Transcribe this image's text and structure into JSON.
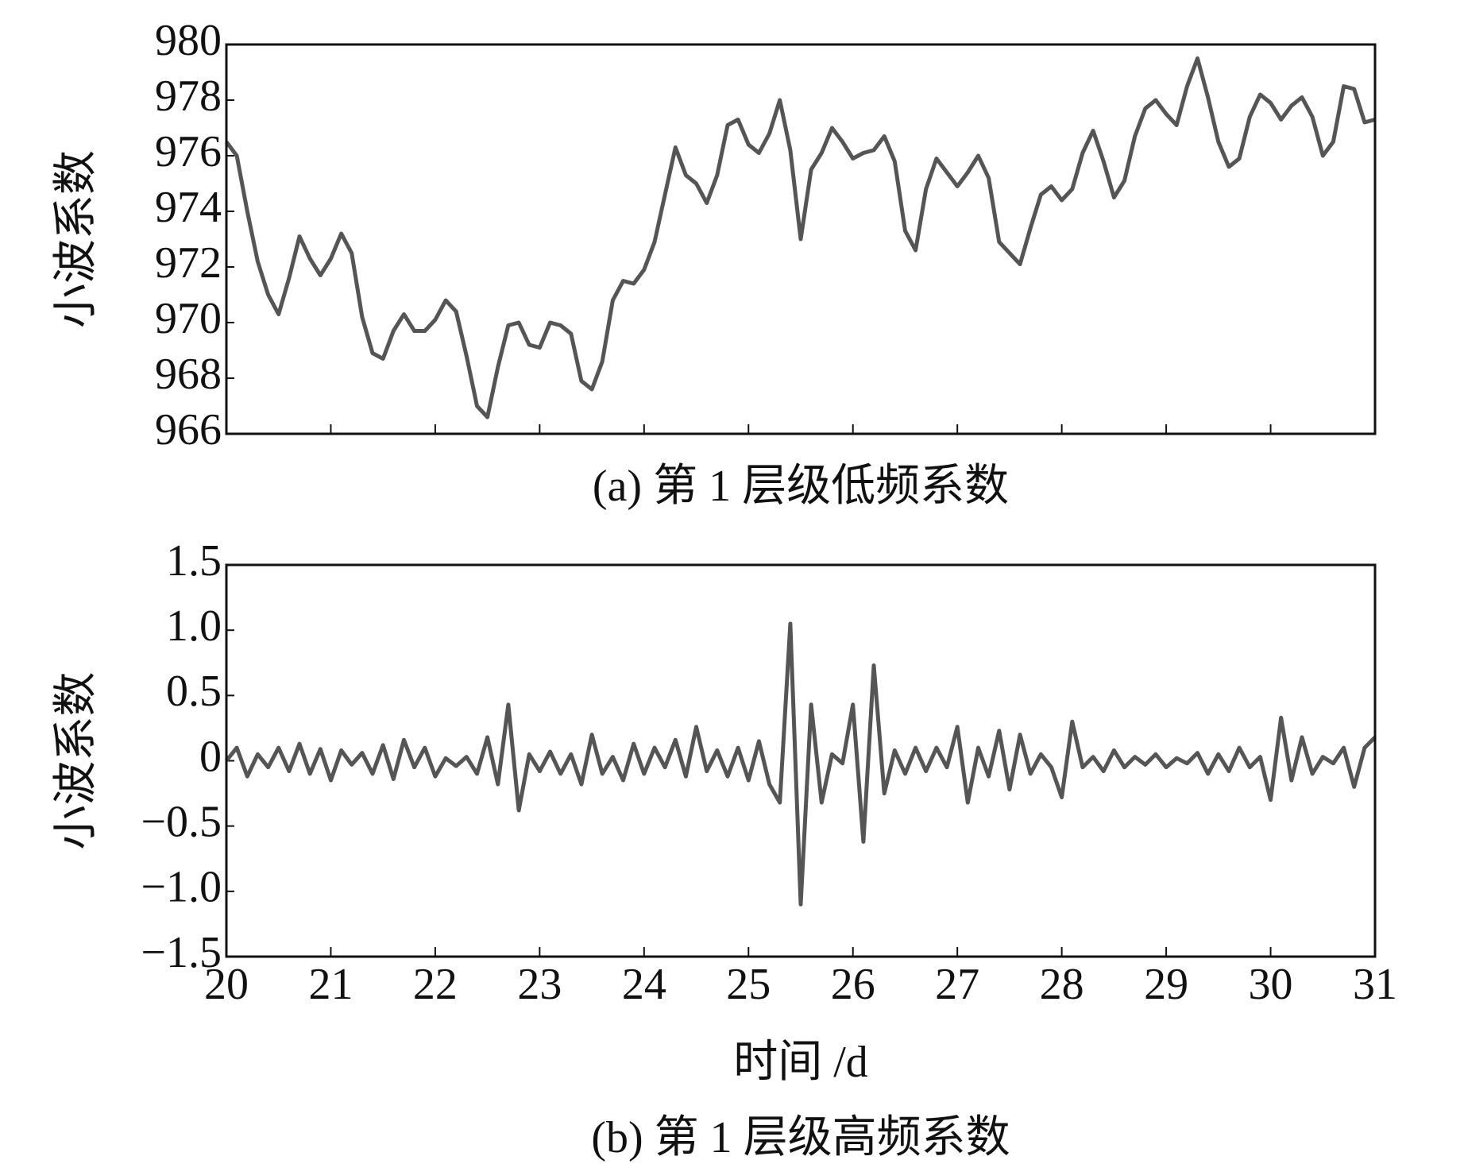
{
  "chart_data": [
    {
      "type": "line",
      "caption": "(a) 第 1 层级低频系数",
      "ylabel": "小波系数",
      "color": "#555555",
      "show_xtick_labels": false,
      "x": [
        20.0,
        20.1,
        20.2,
        20.3,
        20.4,
        20.5,
        20.6,
        20.7,
        20.8,
        20.9,
        21.0,
        21.1,
        21.2,
        21.3,
        21.4,
        21.5,
        21.6,
        21.7,
        21.8,
        21.9,
        22.0,
        22.1,
        22.2,
        22.3,
        22.4,
        22.5,
        22.6,
        22.7,
        22.8,
        22.9,
        23.0,
        23.1,
        23.2,
        23.3,
        23.4,
        23.5,
        23.6,
        23.7,
        23.8,
        23.9,
        24.0,
        24.1,
        24.2,
        24.3,
        24.4,
        24.5,
        24.6,
        24.7,
        24.8,
        24.9,
        25.0,
        25.1,
        25.2,
        25.3,
        25.4,
        25.5,
        25.6,
        25.7,
        25.8,
        25.9,
        26.0,
        26.1,
        26.2,
        26.3,
        26.4,
        26.5,
        26.6,
        26.7,
        26.8,
        26.9,
        27.0,
        27.1,
        27.2,
        27.3,
        27.4,
        27.5,
        27.6,
        27.7,
        27.8,
        27.9,
        28.0,
        28.1,
        28.2,
        28.3,
        28.4,
        28.5,
        28.6,
        28.7,
        28.8,
        28.9,
        29.0,
        29.1,
        29.2,
        29.3,
        29.4,
        29.5,
        29.6,
        29.7,
        29.8,
        29.9,
        30.0,
        30.1,
        30.2,
        30.3,
        30.4,
        30.5,
        30.6,
        30.7,
        30.8,
        30.9,
        31.0
      ],
      "values": [
        976.5,
        976.0,
        974.0,
        972.2,
        971.0,
        970.3,
        971.6,
        973.1,
        972.3,
        971.7,
        972.3,
        973.2,
        972.5,
        970.2,
        968.9,
        968.7,
        969.7,
        970.3,
        969.7,
        969.7,
        970.1,
        970.8,
        970.4,
        968.8,
        967.0,
        966.6,
        968.4,
        969.9,
        970.0,
        969.2,
        969.1,
        970.0,
        969.9,
        969.6,
        967.9,
        967.6,
        968.6,
        970.8,
        971.5,
        971.4,
        971.9,
        972.9,
        974.6,
        976.3,
        975.3,
        975.0,
        974.3,
        975.3,
        977.1,
        977.3,
        976.4,
        976.1,
        976.8,
        978.0,
        976.2,
        973.0,
        975.5,
        976.1,
        977.0,
        976.5,
        975.9,
        976.1,
        976.2,
        976.7,
        975.8,
        973.3,
        972.6,
        974.8,
        975.9,
        975.4,
        974.9,
        975.4,
        976.0,
        975.2,
        972.9,
        972.5,
        972.1,
        973.4,
        974.6,
        974.9,
        974.4,
        974.8,
        976.1,
        976.9,
        975.8,
        974.5,
        975.1,
        976.7,
        977.7,
        978.0,
        977.5,
        977.1,
        978.5,
        979.5,
        978.1,
        976.5,
        975.6,
        975.9,
        977.4,
        978.2,
        977.9,
        977.3,
        977.8,
        978.1,
        977.4,
        976.0,
        976.5,
        978.5,
        978.4,
        977.2,
        977.3
      ],
      "xlim": [
        20,
        31
      ],
      "xticks": [
        20,
        21,
        22,
        23,
        24,
        25,
        26,
        27,
        28,
        29,
        30,
        31
      ],
      "ylim": [
        966,
        980
      ],
      "yticks": [
        966,
        968,
        970,
        972,
        974,
        976,
        978,
        980
      ]
    },
    {
      "type": "line",
      "caption": "(b) 第 1 层级高频系数",
      "ylabel": "小波系数",
      "xlabel": "时间 /d",
      "color": "#555555",
      "show_xtick_labels": true,
      "x": [
        20.0,
        20.1,
        20.2,
        20.3,
        20.4,
        20.5,
        20.6,
        20.7,
        20.8,
        20.9,
        21.0,
        21.1,
        21.2,
        21.3,
        21.4,
        21.5,
        21.6,
        21.7,
        21.8,
        21.9,
        22.0,
        22.1,
        22.2,
        22.3,
        22.4,
        22.5,
        22.6,
        22.7,
        22.8,
        22.9,
        23.0,
        23.1,
        23.2,
        23.3,
        23.4,
        23.5,
        23.6,
        23.7,
        23.8,
        23.9,
        24.0,
        24.1,
        24.2,
        24.3,
        24.4,
        24.5,
        24.6,
        24.7,
        24.8,
        24.9,
        25.0,
        25.1,
        25.2,
        25.3,
        25.4,
        25.5,
        25.6,
        25.7,
        25.8,
        25.9,
        26.0,
        26.1,
        26.2,
        26.3,
        26.4,
        26.5,
        26.6,
        26.7,
        26.8,
        26.9,
        27.0,
        27.1,
        27.2,
        27.3,
        27.4,
        27.5,
        27.6,
        27.7,
        27.8,
        27.9,
        28.0,
        28.1,
        28.2,
        28.3,
        28.4,
        28.5,
        28.6,
        28.7,
        28.8,
        28.9,
        29.0,
        29.1,
        29.2,
        29.3,
        29.4,
        29.5,
        29.6,
        29.7,
        29.8,
        29.9,
        30.0,
        30.1,
        30.2,
        30.3,
        30.4,
        30.5,
        30.6,
        30.7,
        30.8,
        30.9,
        31.0
      ],
      "values": [
        0.0,
        0.1,
        -0.12,
        0.05,
        -0.05,
        0.1,
        -0.08,
        0.13,
        -0.1,
        0.09,
        -0.15,
        0.08,
        -0.03,
        0.06,
        -0.1,
        0.12,
        -0.14,
        0.16,
        -0.05,
        0.1,
        -0.12,
        0.02,
        -0.04,
        0.03,
        -0.1,
        0.18,
        -0.18,
        0.43,
        -0.38,
        0.05,
        -0.08,
        0.07,
        -0.1,
        0.05,
        -0.18,
        0.2,
        -0.1,
        0.03,
        -0.15,
        0.13,
        -0.1,
        0.1,
        -0.05,
        0.16,
        -0.12,
        0.26,
        -0.08,
        0.08,
        -0.12,
        0.1,
        -0.15,
        0.15,
        -0.18,
        -0.32,
        1.05,
        -1.1,
        0.43,
        -0.32,
        0.05,
        -0.02,
        0.43,
        -0.62,
        0.73,
        -0.25,
        0.08,
        -0.1,
        0.1,
        -0.08,
        0.1,
        -0.05,
        0.26,
        -0.32,
        0.1,
        -0.12,
        0.23,
        -0.22,
        0.2,
        -0.1,
        0.05,
        -0.05,
        -0.28,
        0.3,
        -0.05,
        0.03,
        -0.08,
        0.08,
        -0.05,
        0.03,
        -0.03,
        0.05,
        -0.05,
        0.02,
        -0.02,
        0.06,
        -0.1,
        0.05,
        -0.08,
        0.1,
        -0.05,
        0.03,
        -0.3,
        0.33,
        -0.15,
        0.18,
        -0.1,
        0.03,
        -0.02,
        0.1,
        -0.2,
        0.1,
        0.18
      ],
      "xlim": [
        20,
        31
      ],
      "xticks": [
        20,
        21,
        22,
        23,
        24,
        25,
        26,
        27,
        28,
        29,
        30,
        31
      ],
      "ylim": [
        -1.5,
        1.5
      ],
      "yticks": [
        {
          "value": 1.5,
          "label": "1.5"
        },
        {
          "value": 1,
          "label": "1.0"
        },
        {
          "value": 0.5,
          "label": "0.5"
        },
        0,
        {
          "value": -0.5,
          "label": "−0.5"
        },
        {
          "value": -1,
          "label": "−1.0"
        },
        {
          "value": -1.5,
          "label": "−1.5"
        }
      ]
    }
  ]
}
